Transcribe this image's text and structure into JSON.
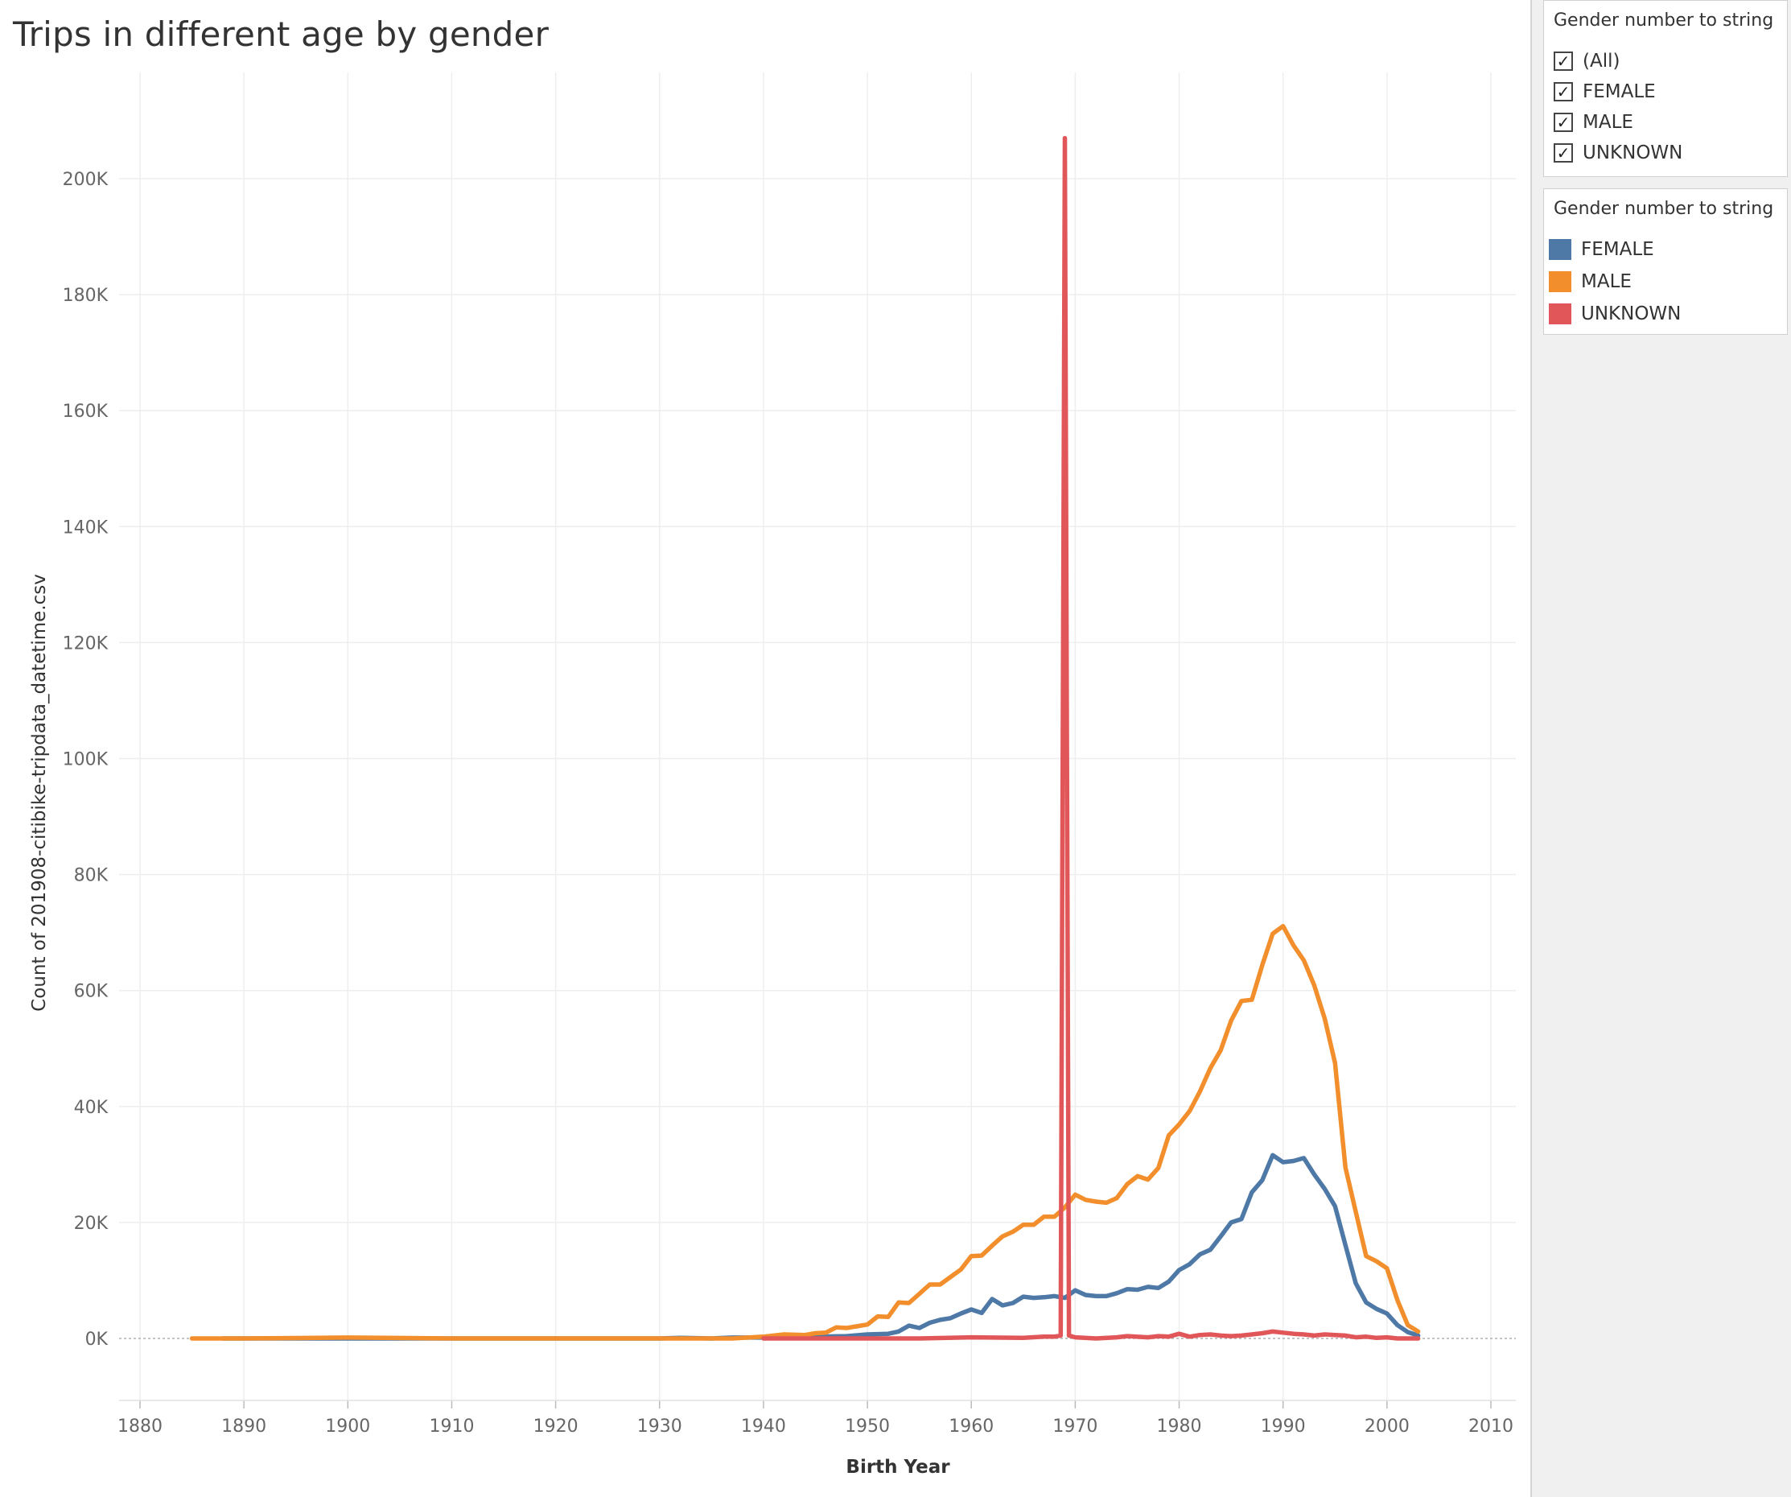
{
  "title": "Trips in different age by gender",
  "filter": {
    "title": "Gender number to string",
    "items": [
      {
        "label": "(All)",
        "checked": true
      },
      {
        "label": "FEMALE",
        "checked": true
      },
      {
        "label": "MALE",
        "checked": true
      },
      {
        "label": "UNKNOWN",
        "checked": true
      }
    ],
    "check_glyph": "✓"
  },
  "legend": {
    "title": "Gender number to string",
    "items": [
      {
        "label": "FEMALE",
        "color": "#4e79a7"
      },
      {
        "label": "MALE",
        "color": "#f28e2b"
      },
      {
        "label": "UNKNOWN",
        "color": "#e15759"
      }
    ]
  },
  "chart_data": {
    "type": "line",
    "title": "Trips in different age by gender",
    "xlabel": "Birth Year",
    "ylabel": "Count of 201908-citibike-tripdata_datetime.csv",
    "xlim": [
      1878,
      2011
    ],
    "ylim": [
      -10000,
      215000
    ],
    "x_ticks": [
      1880,
      1890,
      1900,
      1910,
      1920,
      1930,
      1940,
      1950,
      1960,
      1970,
      1980,
      1990,
      2000,
      2010
    ],
    "y_ticks": [
      0,
      20000,
      40000,
      60000,
      80000,
      100000,
      120000,
      140000,
      160000,
      180000,
      200000
    ],
    "y_tick_labels": [
      "0K",
      "20K",
      "40K",
      "60K",
      "80K",
      "100K",
      "120K",
      "140K",
      "160K",
      "180K",
      "200K"
    ],
    "grid": true,
    "zero_line": "dotted",
    "legend_position": "right",
    "series": [
      {
        "name": "FEMALE",
        "color": "#4e79a7",
        "points": [
          [
            1888,
            0
          ],
          [
            1890,
            0
          ],
          [
            1900,
            0
          ],
          [
            1910,
            0
          ],
          [
            1920,
            0
          ],
          [
            1930,
            0
          ],
          [
            1932,
            100
          ],
          [
            1935,
            0
          ],
          [
            1937,
            150
          ],
          [
            1940,
            150
          ],
          [
            1942,
            200
          ],
          [
            1945,
            300
          ],
          [
            1948,
            400
          ],
          [
            1950,
            700
          ],
          [
            1952,
            800
          ],
          [
            1953,
            1200
          ],
          [
            1954,
            2200
          ],
          [
            1955,
            1800
          ],
          [
            1956,
            2700
          ],
          [
            1957,
            3200
          ],
          [
            1958,
            3500
          ],
          [
            1959,
            4300
          ],
          [
            1960,
            5000
          ],
          [
            1961,
            4400
          ],
          [
            1962,
            6800
          ],
          [
            1963,
            5700
          ],
          [
            1964,
            6100
          ],
          [
            1965,
            7200
          ],
          [
            1966,
            7000
          ],
          [
            1967,
            7100
          ],
          [
            1968,
            7300
          ],
          [
            1969,
            7000
          ],
          [
            1970,
            8300
          ],
          [
            1971,
            7500
          ],
          [
            1972,
            7300
          ],
          [
            1973,
            7300
          ],
          [
            1974,
            7800
          ],
          [
            1975,
            8500
          ],
          [
            1976,
            8400
          ],
          [
            1977,
            8900
          ],
          [
            1978,
            8700
          ],
          [
            1979,
            9800
          ],
          [
            1980,
            11800
          ],
          [
            1981,
            12800
          ],
          [
            1982,
            14500
          ],
          [
            1983,
            15300
          ],
          [
            1984,
            17600
          ],
          [
            1985,
            20000
          ],
          [
            1986,
            20600
          ],
          [
            1987,
            25200
          ],
          [
            1988,
            27300
          ],
          [
            1989,
            31600
          ],
          [
            1990,
            30400
          ],
          [
            1991,
            30600
          ],
          [
            1992,
            31100
          ],
          [
            1993,
            28300
          ],
          [
            1994,
            25800
          ],
          [
            1995,
            22800
          ],
          [
            1996,
            16100
          ],
          [
            1997,
            9500
          ],
          [
            1998,
            6200
          ],
          [
            1999,
            5100
          ],
          [
            2000,
            4300
          ],
          [
            2001,
            2300
          ],
          [
            2002,
            1100
          ],
          [
            2003,
            500
          ]
        ]
      },
      {
        "name": "MALE",
        "color": "#f28e2b",
        "points": [
          [
            1885,
            0
          ],
          [
            1888,
            0
          ],
          [
            1890,
            0
          ],
          [
            1900,
            150
          ],
          [
            1910,
            0
          ],
          [
            1920,
            0
          ],
          [
            1930,
            0
          ],
          [
            1935,
            0
          ],
          [
            1937,
            0
          ],
          [
            1938,
            100
          ],
          [
            1940,
            300
          ],
          [
            1941,
            500
          ],
          [
            1942,
            700
          ],
          [
            1944,
            600
          ],
          [
            1945,
            900
          ],
          [
            1946,
            1000
          ],
          [
            1947,
            1900
          ],
          [
            1948,
            1800
          ],
          [
            1949,
            2100
          ],
          [
            1950,
            2400
          ],
          [
            1951,
            3800
          ],
          [
            1952,
            3700
          ],
          [
            1953,
            6200
          ],
          [
            1954,
            6100
          ],
          [
            1955,
            7700
          ],
          [
            1956,
            9300
          ],
          [
            1957,
            9300
          ],
          [
            1958,
            10600
          ],
          [
            1959,
            11900
          ],
          [
            1960,
            14200
          ],
          [
            1961,
            14300
          ],
          [
            1962,
            16000
          ],
          [
            1963,
            17600
          ],
          [
            1964,
            18400
          ],
          [
            1965,
            19600
          ],
          [
            1966,
            19600
          ],
          [
            1967,
            21000
          ],
          [
            1968,
            21000
          ],
          [
            1969,
            22600
          ],
          [
            1970,
            24800
          ],
          [
            1971,
            23900
          ],
          [
            1972,
            23600
          ],
          [
            1973,
            23400
          ],
          [
            1974,
            24200
          ],
          [
            1975,
            26600
          ],
          [
            1976,
            28000
          ],
          [
            1977,
            27400
          ],
          [
            1978,
            29400
          ],
          [
            1979,
            35000
          ],
          [
            1980,
            36900
          ],
          [
            1981,
            39200
          ],
          [
            1982,
            42600
          ],
          [
            1983,
            46600
          ],
          [
            1984,
            49700
          ],
          [
            1985,
            54800
          ],
          [
            1986,
            58200
          ],
          [
            1987,
            58400
          ],
          [
            1988,
            64400
          ],
          [
            1989,
            69800
          ],
          [
            1990,
            71100
          ],
          [
            1991,
            67800
          ],
          [
            1992,
            65200
          ],
          [
            1993,
            60900
          ],
          [
            1994,
            55200
          ],
          [
            1995,
            47500
          ],
          [
            1996,
            29500
          ],
          [
            1997,
            21800
          ],
          [
            1998,
            14200
          ],
          [
            1999,
            13300
          ],
          [
            2000,
            12100
          ],
          [
            2001,
            6600
          ],
          [
            2002,
            2300
          ],
          [
            2003,
            1200
          ]
        ]
      },
      {
        "name": "UNKNOWN",
        "color": "#e15759",
        "points": [
          [
            1940,
            0
          ],
          [
            1950,
            0
          ],
          [
            1955,
            0
          ],
          [
            1960,
            200
          ],
          [
            1965,
            100
          ],
          [
            1967,
            300
          ],
          [
            1968,
            300
          ],
          [
            1968.6,
            500
          ],
          [
            1969,
            207000
          ],
          [
            1969.4,
            500
          ],
          [
            1970,
            200
          ],
          [
            1972,
            0
          ],
          [
            1974,
            200
          ],
          [
            1975,
            400
          ],
          [
            1977,
            200
          ],
          [
            1978,
            400
          ],
          [
            1979,
            300
          ],
          [
            1980,
            800
          ],
          [
            1981,
            300
          ],
          [
            1982,
            600
          ],
          [
            1983,
            700
          ],
          [
            1984,
            500
          ],
          [
            1985,
            400
          ],
          [
            1986,
            500
          ],
          [
            1987,
            700
          ],
          [
            1988,
            900
          ],
          [
            1989,
            1200
          ],
          [
            1990,
            1000
          ],
          [
            1991,
            800
          ],
          [
            1992,
            700
          ],
          [
            1993,
            500
          ],
          [
            1994,
            700
          ],
          [
            1995,
            600
          ],
          [
            1996,
            500
          ],
          [
            1997,
            200
          ],
          [
            1998,
            300
          ],
          [
            1999,
            100
          ],
          [
            2000,
            200
          ],
          [
            2001,
            0
          ],
          [
            2002,
            0
          ],
          [
            2003,
            0
          ]
        ]
      }
    ]
  }
}
